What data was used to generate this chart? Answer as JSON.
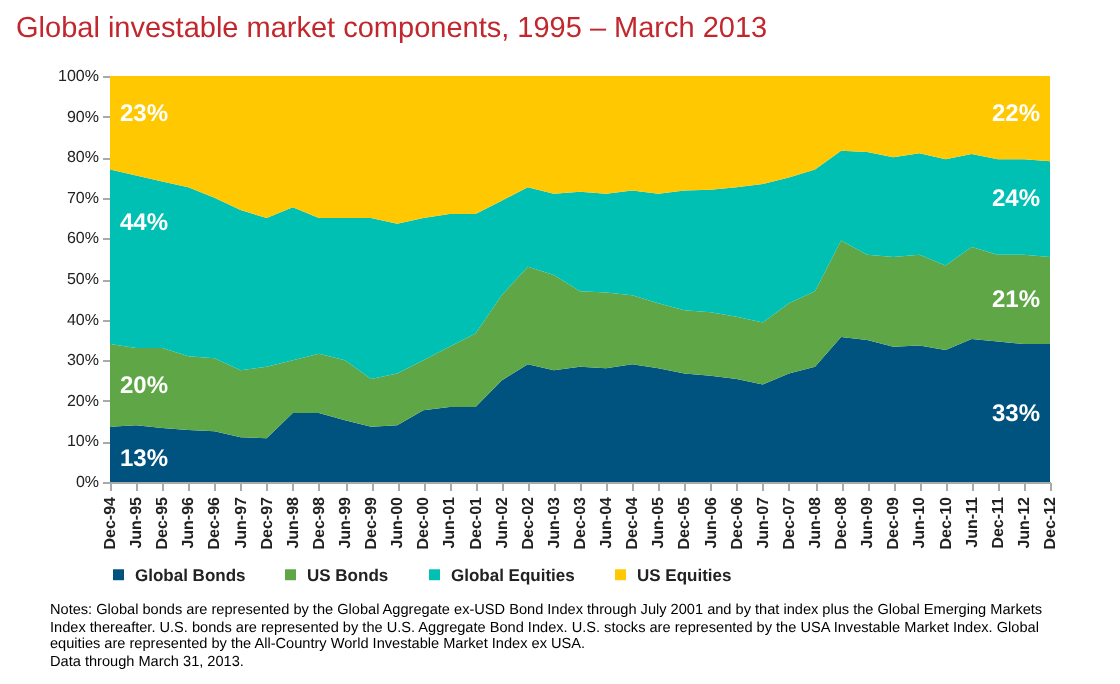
{
  "chart_data": {
    "type": "area",
    "stacked": true,
    "title": "Global investable market components, 1995 – March 2013",
    "categories": [
      "Dec-94",
      "Jun-95",
      "Dec-95",
      "Jun-96",
      "Dec-96",
      "Jun-97",
      "Dec-97",
      "Jun-98",
      "Dec-98",
      "Jun-99",
      "Dec-99",
      "Jun-00",
      "Dec-00",
      "Jun-01",
      "Dec-01",
      "Jun-02",
      "Dec-02",
      "Jun-03",
      "Dec-03",
      "Jun-04",
      "Dec-04",
      "Jun-05",
      "Dec-05",
      "Jun-06",
      "Dec-06",
      "Jun-07",
      "Dec-07",
      "Jun-08",
      "Dec-08",
      "Jun-09",
      "Dec-09",
      "Jun-10",
      "Dec-10",
      "Jun-11",
      "Dec-11",
      "Jun-12",
      "Dec-12"
    ],
    "series": [
      {
        "name": "Global Bonds",
        "color": "#00527f",
        "values": [
          13.6,
          14,
          13.3,
          12.8,
          12.5,
          11,
          10.8,
          17,
          17,
          15.2,
          13.6,
          14,
          17.7,
          18.5,
          18.5,
          25,
          29,
          27.5,
          28.4,
          28,
          29,
          28,
          26.7,
          26.2,
          25.4,
          24,
          26.7,
          28.4,
          35.7,
          35,
          33.3,
          33.6,
          32.5,
          35.2,
          34.6,
          34,
          34
        ]
      },
      {
        "name": "US Bonds",
        "color": "#5ea646",
        "values": [
          20.4,
          19,
          19.7,
          18.2,
          18,
          16.5,
          17.6,
          13,
          14.6,
          14.8,
          11.8,
          12.7,
          12.3,
          14.8,
          18.1,
          21,
          24,
          23.5,
          18.6,
          18.7,
          17,
          16,
          15.6,
          15.6,
          15.3,
          15.3,
          17.3,
          18.6,
          23.8,
          21,
          22.1,
          22.4,
          20.8,
          22.7,
          21.4,
          22,
          21.4
        ]
      },
      {
        "name": "Global Equities",
        "color": "#00bfb3",
        "values": [
          43,
          42.5,
          41,
          41.6,
          39.5,
          39.5,
          36.6,
          37.7,
          33.4,
          35,
          39.6,
          36.9,
          35,
          32.7,
          29.4,
          23.3,
          19.6,
          20,
          24.5,
          24.3,
          25.8,
          27,
          29.5,
          30.2,
          31.9,
          34.1,
          31,
          30,
          22.1,
          25.3,
          24.6,
          25,
          26.2,
          22.9,
          23.5,
          23.5,
          23.6
        ]
      },
      {
        "name": "US Equities",
        "color": "#ffc800",
        "values": [
          23,
          24.5,
          26,
          27.4,
          30,
          33,
          35,
          32.3,
          35,
          35,
          35,
          36.4,
          35,
          34,
          34,
          30.7,
          27.4,
          29,
          28.5,
          29,
          28.2,
          29,
          28.2,
          28,
          27.4,
          26.6,
          25,
          23,
          18.4,
          18.7,
          20,
          19,
          20.5,
          19.2,
          20.5,
          20.5,
          21
        ]
      }
    ],
    "ylim": [
      0,
      100
    ],
    "yticks": [
      {
        "value": 0,
        "label": "0%"
      },
      {
        "value": 10,
        "label": "10%"
      },
      {
        "value": 20,
        "label": "20%"
      },
      {
        "value": 30,
        "label": "30%"
      },
      {
        "value": 40,
        "label": "40%"
      },
      {
        "value": 50,
        "label": "50%"
      },
      {
        "value": 60,
        "label": "60%"
      },
      {
        "value": 70,
        "label": "70%"
      },
      {
        "value": 80,
        "label": "80%"
      },
      {
        "value": 90,
        "label": "90%"
      },
      {
        "value": 100,
        "label": "100%"
      }
    ],
    "legend": "bottom",
    "annotations": [
      {
        "text": "13%",
        "x": "Dec-94",
        "y": 6
      },
      {
        "text": "20%",
        "x": "Dec-94",
        "y": 24
      },
      {
        "text": "44%",
        "x": "Dec-94",
        "y": 64
      },
      {
        "text": "23%",
        "x": "Dec-94",
        "y": 91
      },
      {
        "text": "33%",
        "x": "Dec-12",
        "y": 17
      },
      {
        "text": "21%",
        "x": "Dec-12",
        "y": 45
      },
      {
        "text": "24%",
        "x": "Dec-12",
        "y": 70
      },
      {
        "text": "22%",
        "x": "Dec-12",
        "y": 91
      },
      "Notes: Global bonds are represented by the Global Aggregate ex-USD Bond Index through July 2001 and by that index plus the Global Emerging Markets Index thereafter. U.S. bonds are represented by the U.S. Aggregate Bond Index. U.S. stocks are represented by the USA Investable Market Index. Global equities are represented by the All-Country World Investable Market Index ex USA.",
      "Data through March 31, 2013."
    ]
  }
}
